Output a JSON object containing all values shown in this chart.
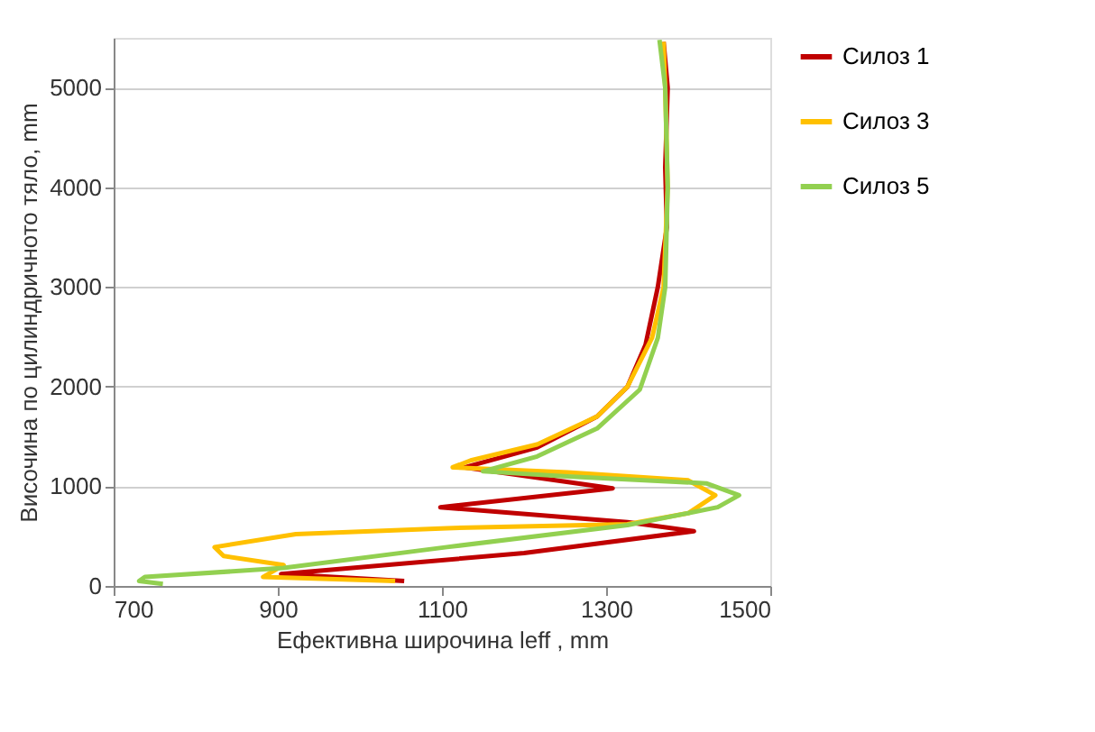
{
  "chart_data": {
    "type": "line",
    "xlabel": "Ефективна широчина leff , mm",
    "ylabel": "Височина по цилиндричното тяло, mm",
    "xlim": [
      700,
      1500
    ],
    "xticks": [
      700,
      900,
      1100,
      1300,
      1500
    ],
    "ylim": [
      0,
      5500
    ],
    "yticks": [
      0,
      1000,
      2000,
      3000,
      4000,
      5000
    ],
    "grid": "y",
    "legend": "right",
    "marker": "none",
    "line_style": "solid",
    "series": [
      {
        "name": "Силоз 1",
        "color": "#c00000",
        "x": [
          1054,
          904,
          1200,
          1407,
          1326,
          1098,
          1308,
          1128,
          1216,
          1289,
          1326,
          1348,
          1363,
          1374,
          1372,
          1375,
          1370
        ],
        "values": [
          50,
          120,
          330,
          550,
          640,
          790,
          980,
          1190,
          1390,
          1700,
          2000,
          2420,
          3000,
          3600,
          4200,
          5000,
          5460
        ]
      },
      {
        "name": "Силоз 3",
        "color": "#ffc000",
        "x": [
          1043,
          882,
          907,
          834,
          823,
          922,
          1106,
          1326,
          1400,
          1433,
          1400,
          1253,
          1113,
          1135,
          1216,
          1289,
          1326,
          1356,
          1370,
          1375,
          1372,
          1370
        ],
        "values": [
          50,
          90,
          210,
          300,
          390,
          520,
          580,
          620,
          730,
          910,
          1060,
          1140,
          1190,
          1260,
          1420,
          1700,
          2000,
          2490,
          3000,
          4000,
          5000,
          5460
        ]
      },
      {
        "name": "Силоз 5",
        "color": "#92d050",
        "x": [
          760,
          731,
          738,
          907,
          1106,
          1326,
          1436,
          1462,
          1422,
          1253,
          1150,
          1216,
          1289,
          1341,
          1363,
          1372,
          1375,
          1372,
          1365
        ],
        "values": [
          20,
          50,
          90,
          180,
          390,
          610,
          790,
          910,
          1030,
          1100,
          1150,
          1300,
          1580,
          1970,
          2490,
          3000,
          4000,
          5000,
          5480
        ]
      }
    ]
  }
}
